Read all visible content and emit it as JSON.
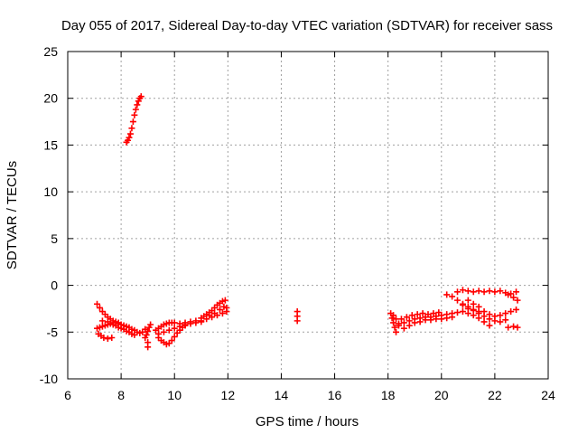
{
  "chart_data": {
    "type": "scatter",
    "title": "Day 055 of 2017, Sidereal Day-to-day VTEC variation (SDTVAR) for receiver sass",
    "xlabel": "GPS time / hours",
    "ylabel": "SDTVAR / TECUs",
    "xlim": [
      6,
      24
    ],
    "ylim": [
      -10,
      25
    ],
    "xticks": [
      6,
      8,
      10,
      12,
      14,
      16,
      18,
      20,
      22,
      24
    ],
    "yticks": [
      -10,
      -5,
      0,
      5,
      10,
      15,
      20,
      25
    ],
    "grid": true,
    "marker": "plus",
    "series": [
      {
        "name": "SDTVAR",
        "color": "#ff0000",
        "points": [
          [
            8.2,
            15.3
          ],
          [
            8.25,
            15.5
          ],
          [
            8.3,
            15.8
          ],
          [
            8.35,
            16.2
          ],
          [
            8.4,
            16.8
          ],
          [
            8.45,
            17.5
          ],
          [
            8.5,
            18.2
          ],
          [
            8.55,
            18.8
          ],
          [
            8.6,
            19.3
          ],
          [
            8.65,
            19.7
          ],
          [
            8.7,
            20.0
          ],
          [
            8.75,
            20.2
          ],
          [
            7.1,
            -2.0
          ],
          [
            7.2,
            -2.4
          ],
          [
            7.3,
            -2.8
          ],
          [
            7.4,
            -3.1
          ],
          [
            7.5,
            -3.4
          ],
          [
            7.6,
            -3.6
          ],
          [
            7.7,
            -3.8
          ],
          [
            7.8,
            -3.9
          ],
          [
            7.9,
            -4.0
          ],
          [
            8.0,
            -4.2
          ],
          [
            8.1,
            -4.3
          ],
          [
            8.2,
            -4.4
          ],
          [
            8.3,
            -4.5
          ],
          [
            8.4,
            -4.7
          ],
          [
            8.5,
            -4.8
          ],
          [
            8.6,
            -5.0
          ],
          [
            8.7,
            -5.1
          ],
          [
            8.8,
            -5.0
          ],
          [
            8.9,
            -4.7
          ],
          [
            7.1,
            -4.6
          ],
          [
            7.2,
            -4.5
          ],
          [
            7.3,
            -4.4
          ],
          [
            7.4,
            -4.3
          ],
          [
            7.5,
            -4.2
          ],
          [
            7.6,
            -4.1
          ],
          [
            7.7,
            -4.2
          ],
          [
            7.8,
            -4.3
          ],
          [
            7.9,
            -4.5
          ],
          [
            8.0,
            -4.6
          ],
          [
            8.1,
            -4.7
          ],
          [
            8.2,
            -4.9
          ],
          [
            8.3,
            -5.0
          ],
          [
            8.4,
            -5.2
          ],
          [
            8.5,
            -5.3
          ],
          [
            7.15,
            -5.2
          ],
          [
            7.25,
            -5.4
          ],
          [
            7.35,
            -5.6
          ],
          [
            7.5,
            -5.7
          ],
          [
            7.65,
            -5.6
          ],
          [
            7.3,
            -3.8
          ],
          [
            7.5,
            -3.9
          ],
          [
            7.7,
            -4.0
          ],
          [
            7.9,
            -4.1
          ],
          [
            8.9,
            -5.6
          ],
          [
            8.95,
            -5.3
          ],
          [
            9.0,
            -4.9
          ],
          [
            9.05,
            -4.5
          ],
          [
            9.1,
            -4.2
          ],
          [
            9.0,
            -6.1
          ],
          [
            9.0,
            -6.6
          ],
          [
            9.4,
            -5.6
          ],
          [
            9.5,
            -5.9
          ],
          [
            9.6,
            -6.1
          ],
          [
            9.7,
            -6.3
          ],
          [
            9.8,
            -6.2
          ],
          [
            9.9,
            -5.9
          ],
          [
            10.0,
            -5.5
          ],
          [
            10.1,
            -5.1
          ],
          [
            10.2,
            -4.8
          ],
          [
            10.3,
            -4.5
          ],
          [
            10.4,
            -4.3
          ],
          [
            9.3,
            -4.8
          ],
          [
            9.4,
            -4.6
          ],
          [
            9.5,
            -4.4
          ],
          [
            9.6,
            -4.2
          ],
          [
            9.7,
            -4.1
          ],
          [
            9.8,
            -4.0
          ],
          [
            9.9,
            -4.0
          ],
          [
            10.0,
            -4.0
          ],
          [
            10.2,
            -4.1
          ],
          [
            10.4,
            -4.0
          ],
          [
            10.6,
            -3.9
          ],
          [
            10.8,
            -3.8
          ],
          [
            11.0,
            -3.8
          ],
          [
            9.4,
            -5.2
          ],
          [
            9.6,
            -5.0
          ],
          [
            9.8,
            -4.8
          ],
          [
            10.0,
            -4.6
          ],
          [
            10.2,
            -4.4
          ],
          [
            10.4,
            -4.2
          ],
          [
            10.6,
            -4.1
          ],
          [
            10.8,
            -4.0
          ],
          [
            11.0,
            -3.5
          ],
          [
            11.1,
            -3.3
          ],
          [
            11.2,
            -3.1
          ],
          [
            11.3,
            -2.9
          ],
          [
            11.4,
            -2.7
          ],
          [
            11.5,
            -2.4
          ],
          [
            11.6,
            -2.1
          ],
          [
            11.7,
            -1.9
          ],
          [
            11.8,
            -1.7
          ],
          [
            11.9,
            -1.6
          ],
          [
            11.0,
            -3.9
          ],
          [
            11.2,
            -3.6
          ],
          [
            11.4,
            -3.4
          ],
          [
            11.6,
            -3.2
          ],
          [
            11.8,
            -3.0
          ],
          [
            11.95,
            -2.8
          ],
          [
            11.3,
            -3.2
          ],
          [
            11.5,
            -3.0
          ],
          [
            11.7,
            -2.6
          ],
          [
            11.85,
            -2.3
          ],
          [
            11.95,
            -2.4
          ],
          [
            14.6,
            -2.8
          ],
          [
            14.6,
            -3.3
          ],
          [
            14.6,
            -3.8
          ],
          [
            18.1,
            -3.0
          ],
          [
            18.15,
            -3.5
          ],
          [
            18.2,
            -4.0
          ],
          [
            18.25,
            -4.5
          ],
          [
            18.3,
            -5.0
          ],
          [
            18.2,
            -3.2
          ],
          [
            18.3,
            -3.6
          ],
          [
            18.4,
            -4.1
          ],
          [
            18.4,
            -4.3
          ],
          [
            18.6,
            -4.0
          ],
          [
            18.8,
            -3.8
          ],
          [
            19.0,
            -3.6
          ],
          [
            19.2,
            -3.5
          ],
          [
            19.4,
            -3.4
          ],
          [
            19.6,
            -3.4
          ],
          [
            19.8,
            -3.3
          ],
          [
            20.0,
            -3.2
          ],
          [
            20.2,
            -3.1
          ],
          [
            20.4,
            -3.0
          ],
          [
            20.6,
            -2.9
          ],
          [
            18.5,
            -3.6
          ],
          [
            18.7,
            -3.4
          ],
          [
            18.9,
            -3.2
          ],
          [
            19.1,
            -3.1
          ],
          [
            19.3,
            -3.0
          ],
          [
            19.5,
            -3.1
          ],
          [
            19.7,
            -3.0
          ],
          [
            19.9,
            -2.9
          ],
          [
            18.6,
            -4.6
          ],
          [
            18.8,
            -4.3
          ],
          [
            19.0,
            -4.0
          ],
          [
            19.2,
            -3.9
          ],
          [
            19.4,
            -3.7
          ],
          [
            19.6,
            -3.7
          ],
          [
            19.8,
            -3.6
          ],
          [
            20.0,
            -3.6
          ],
          [
            20.2,
            -3.5
          ],
          [
            20.4,
            -3.4
          ],
          [
            20.2,
            -1.0
          ],
          [
            20.4,
            -1.2
          ],
          [
            20.6,
            -1.6
          ],
          [
            20.8,
            -2.1
          ],
          [
            21.0,
            -2.5
          ],
          [
            21.2,
            -2.7
          ],
          [
            21.4,
            -2.8
          ],
          [
            20.6,
            -0.7
          ],
          [
            20.8,
            -0.5
          ],
          [
            21.0,
            -0.6
          ],
          [
            21.2,
            -0.7
          ],
          [
            21.4,
            -0.6
          ],
          [
            21.6,
            -0.7
          ],
          [
            21.8,
            -0.6
          ],
          [
            22.0,
            -0.7
          ],
          [
            22.2,
            -0.6
          ],
          [
            22.4,
            -0.8
          ],
          [
            22.6,
            -0.9
          ],
          [
            22.8,
            -0.7
          ],
          [
            20.8,
            -2.0
          ],
          [
            21.0,
            -2.3
          ],
          [
            21.2,
            -2.6
          ],
          [
            21.4,
            -3.0
          ],
          [
            21.6,
            -3.3
          ],
          [
            21.8,
            -3.6
          ],
          [
            22.0,
            -3.8
          ],
          [
            22.2,
            -3.9
          ],
          [
            22.4,
            -3.7
          ],
          [
            21.0,
            -1.6
          ],
          [
            21.2,
            -2.0
          ],
          [
            21.4,
            -2.3
          ],
          [
            21.6,
            -2.8
          ],
          [
            21.8,
            -3.1
          ],
          [
            22.0,
            -3.3
          ],
          [
            22.2,
            -3.2
          ],
          [
            22.4,
            -3.0
          ],
          [
            22.6,
            -2.8
          ],
          [
            22.8,
            -2.6
          ],
          [
            20.8,
            -2.8
          ],
          [
            21.0,
            -3.0
          ],
          [
            21.2,
            -3.2
          ],
          [
            21.4,
            -3.5
          ],
          [
            21.6,
            -3.9
          ],
          [
            21.8,
            -4.3
          ],
          [
            22.5,
            -4.5
          ],
          [
            22.7,
            -4.4
          ],
          [
            22.85,
            -4.5
          ],
          [
            22.5,
            -1.0
          ],
          [
            22.7,
            -1.3
          ],
          [
            22.85,
            -1.6
          ]
        ]
      }
    ]
  }
}
